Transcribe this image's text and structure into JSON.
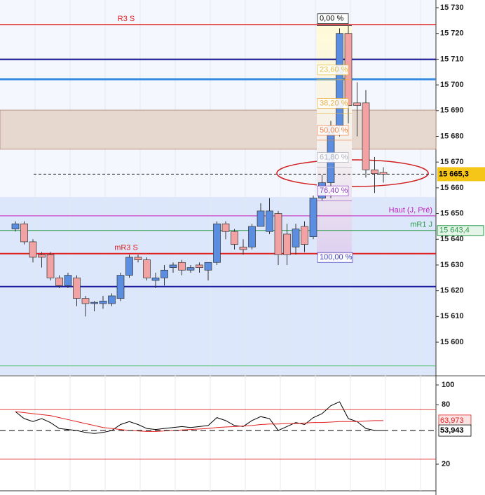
{
  "chart_data": {
    "type": "candlestick",
    "ylim": [
      15587.2,
      15733
    ],
    "yticks": [
      {
        "value": 15600,
        "label": "15 600"
      },
      {
        "value": 15610,
        "label": "15 610"
      },
      {
        "value": 15620,
        "label": "15 620"
      },
      {
        "value": 15630,
        "label": "15 630"
      },
      {
        "value": 15640,
        "label": "15 640"
      },
      {
        "value": 15650,
        "label": "15 650"
      },
      {
        "value": 15660,
        "label": "15 660"
      },
      {
        "value": 15670,
        "label": "15 670"
      },
      {
        "value": 15680,
        "label": "15 680"
      },
      {
        "value": 15690,
        "label": "15 690"
      },
      {
        "value": 15700,
        "label": "15 700"
      },
      {
        "value": 15710,
        "label": "15 710"
      },
      {
        "value": 15720,
        "label": "15 720"
      },
      {
        "value": 15730,
        "label": "15 730"
      }
    ],
    "up_color": "#5b8de0",
    "down_color": "#f2a2a2",
    "candles": [
      {
        "o": 15644,
        "h": 15647,
        "l": 15643,
        "c": 15646
      },
      {
        "o": 15646,
        "h": 15647,
        "l": 15638,
        "c": 15639
      },
      {
        "o": 15639,
        "h": 15640,
        "l": 15631,
        "c": 15633
      },
      {
        "o": 15634,
        "h": 15635,
        "l": 15629,
        "c": 15633
      },
      {
        "o": 15634,
        "h": 15635,
        "l": 15624,
        "c": 15625
      },
      {
        "o": 15625,
        "h": 15626,
        "l": 15621,
        "c": 15622
      },
      {
        "o": 15622,
        "h": 15627,
        "l": 15621,
        "c": 15626
      },
      {
        "o": 15625,
        "h": 15626,
        "l": 15614,
        "c": 15617
      },
      {
        "o": 15617,
        "h": 15618,
        "l": 15610,
        "c": 15615
      },
      {
        "o": 15615,
        "h": 15616,
        "l": 15612,
        "c": 15615.5
      },
      {
        "o": 15615,
        "h": 15618,
        "l": 15613,
        "c": 15616
      },
      {
        "o": 15615,
        "h": 15619,
        "l": 15614,
        "c": 15618
      },
      {
        "o": 15617,
        "h": 15627,
        "l": 15616,
        "c": 15626
      },
      {
        "o": 15626,
        "h": 15634,
        "l": 15625,
        "c": 15633
      },
      {
        "o": 15633,
        "h": 15634,
        "l": 15631,
        "c": 15632
      },
      {
        "o": 15632,
        "h": 15633,
        "l": 15624,
        "c": 15625
      },
      {
        "o": 15624,
        "h": 15627,
        "l": 15621,
        "c": 15625
      },
      {
        "o": 15625,
        "h": 15630,
        "l": 15622,
        "c": 15628
      },
      {
        "o": 15629,
        "h": 15631,
        "l": 15627,
        "c": 15630
      },
      {
        "o": 15631,
        "h": 15632,
        "l": 15626,
        "c": 15628
      },
      {
        "o": 15628,
        "h": 15630,
        "l": 15627,
        "c": 15629
      },
      {
        "o": 15630,
        "h": 15631,
        "l": 15627,
        "c": 15629
      },
      {
        "o": 15628,
        "h": 15631,
        "l": 15624,
        "c": 15631
      },
      {
        "o": 15631,
        "h": 15647,
        "l": 15630,
        "c": 15646
      },
      {
        "o": 15646,
        "h": 15647,
        "l": 15640,
        "c": 15643
      },
      {
        "o": 15643,
        "h": 15644,
        "l": 15636,
        "c": 15638
      },
      {
        "o": 15637,
        "h": 15640,
        "l": 15634,
        "c": 15636
      },
      {
        "o": 15637,
        "h": 15646,
        "l": 15636,
        "c": 15645
      },
      {
        "o": 15645,
        "h": 15654,
        "l": 15645,
        "c": 15651
      },
      {
        "o": 15643,
        "h": 15656,
        "l": 15642,
        "c": 15651
      },
      {
        "o": 15650,
        "h": 15651,
        "l": 15630,
        "c": 15634
      },
      {
        "o": 15642,
        "h": 15646,
        "l": 15630,
        "c": 15634
      },
      {
        "o": 15637,
        "h": 15646,
        "l": 15634,
        "c": 15644
      },
      {
        "o": 15645,
        "h": 15647,
        "l": 15635,
        "c": 15638
      },
      {
        "o": 15641,
        "h": 15657,
        "l": 15640,
        "c": 15656
      },
      {
        "o": 15656,
        "h": 15665,
        "l": 15655,
        "c": 15662
      },
      {
        "o": 15662,
        "h": 15686,
        "l": 15656,
        "c": 15684
      },
      {
        "o": 15684,
        "h": 15722,
        "l": 15680,
        "c": 15720
      },
      {
        "o": 15720,
        "h": 15723,
        "l": 15685,
        "c": 15692
      },
      {
        "o": 15693,
        "h": 15701,
        "l": 15680,
        "c": 15692
      },
      {
        "o": 15693,
        "h": 15698,
        "l": 15664,
        "c": 15667
      },
      {
        "o": 15667,
        "h": 15672,
        "l": 15658,
        "c": 15665.5
      },
      {
        "o": 15666,
        "h": 15668,
        "l": 15662,
        "c": 15665.3
      }
    ],
    "zone": {
      "from": 15675,
      "to": 15690.2,
      "color": "#e6d7cf"
    },
    "levels": [
      {
        "name": "R3 S",
        "value": 15723.4,
        "color": "#e02020",
        "width": 1.5
      },
      {
        "value": 15710.1,
        "color": "#8a8a8a",
        "width": 1
      },
      {
        "value": 15709.9,
        "color": "#1a1a9a",
        "width": 2
      },
      {
        "value": 15702.2,
        "color": "#3a8ee0",
        "width": 3
      },
      {
        "name": "Haut (J, Pré)",
        "value": 15649.1,
        "color": "#c020c0",
        "width": 1
      },
      {
        "name": "mR1 J",
        "value": 15643.4,
        "color": "#2a9a4a",
        "width": 1,
        "label": "15 643,4"
      },
      {
        "name": "mR3 S",
        "value": 15634.4,
        "color": "#e02020",
        "width": 2
      },
      {
        "value": 15621.6,
        "color": "#1a1aa0",
        "width": 2
      },
      {
        "value": 15590.8,
        "color": "#60c080",
        "width": 1
      }
    ],
    "current": {
      "value": 15665.3,
      "label": "15 665,3"
    },
    "fibonacci": {
      "high": 15723,
      "low": 15634,
      "levels": [
        {
          "value": 0,
          "label": "0,00 %"
        },
        {
          "value": 23.6,
          "label": "23,60 %"
        },
        {
          "value": 38.2,
          "label": "38,20 %"
        },
        {
          "value": 50,
          "label": "50,00 %"
        },
        {
          "value": 61.8,
          "label": "61,80 %"
        },
        {
          "value": 76.4,
          "label": "76,40 %"
        },
        {
          "value": 100,
          "label": "100,00 %"
        }
      ]
    },
    "oscillator": {
      "ylim": [
        -6.9,
        108.5
      ],
      "yticks": [
        20,
        80,
        100
      ],
      "bands": [
        75,
        25
      ],
      "series": [
        {
          "color": "#000000",
          "values": [
            73,
            66,
            63,
            66,
            62,
            56,
            55,
            54,
            52,
            51,
            52,
            54,
            60,
            63,
            60,
            56,
            55,
            56,
            57,
            58,
            57,
            58,
            59,
            67,
            64,
            59,
            58,
            64,
            68,
            66,
            54,
            58,
            62,
            60,
            67,
            71,
            79,
            83,
            66,
            63,
            56,
            54,
            54
          ]
        },
        {
          "color": "#e02020",
          "values": [
            73,
            72,
            71,
            70,
            69,
            67,
            65,
            63,
            61,
            59,
            57,
            56,
            55,
            54,
            53.5,
            53,
            53,
            53.5,
            54,
            54.5,
            55,
            55.5,
            56,
            57,
            57.5,
            58,
            58.5,
            59,
            60,
            60.5,
            60.5,
            61,
            61,
            61.5,
            62,
            62,
            62.5,
            63,
            63,
            63,
            63.5,
            64,
            64
          ]
        }
      ],
      "tags": [
        {
          "value": 63.973,
          "label": "63,973",
          "color": "#e02020"
        },
        {
          "value": 53.943,
          "label": "53,943",
          "color": "#000000"
        }
      ]
    }
  }
}
